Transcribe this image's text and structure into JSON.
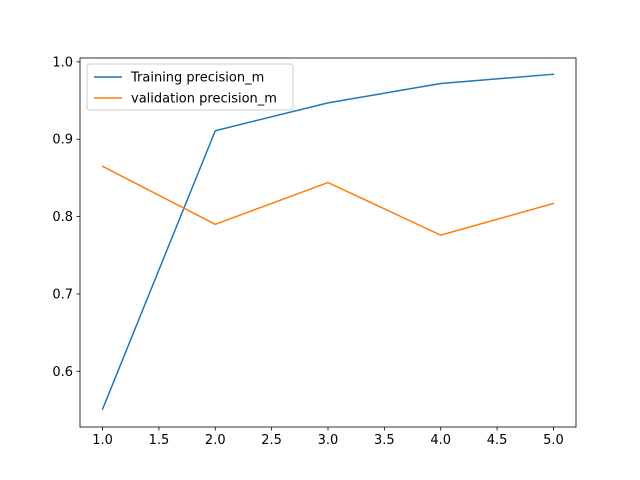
{
  "chart_data": {
    "type": "line",
    "title": "",
    "xlabel": "",
    "ylabel": "",
    "x": [
      1.0,
      2.0,
      3.0,
      4.0,
      5.0
    ],
    "xlim": [
      0.8,
      5.2
    ],
    "ylim": [
      0.528,
      1.005
    ],
    "xticks": [
      1.0,
      1.5,
      2.0,
      2.5,
      3.0,
      3.5,
      4.0,
      4.5,
      5.0
    ],
    "xtick_labels": [
      "1.0",
      "1.5",
      "2.0",
      "2.5",
      "3.0",
      "3.5",
      "4.0",
      "4.5",
      "5.0"
    ],
    "yticks": [
      0.6,
      0.7,
      0.8,
      0.9,
      1.0
    ],
    "ytick_labels": [
      "0.6",
      "0.7",
      "0.8",
      "0.9",
      "1.0"
    ],
    "grid": false,
    "legend_position": "upper-left",
    "series": [
      {
        "name": "Training precision_m",
        "color": "#1f77b4",
        "values": [
          0.551,
          0.911,
          0.947,
          0.972,
          0.984
        ]
      },
      {
        "name": "validation precision_m",
        "color": "#ff7f0e",
        "values": [
          0.865,
          0.79,
          0.844,
          0.776,
          0.817
        ]
      }
    ]
  }
}
